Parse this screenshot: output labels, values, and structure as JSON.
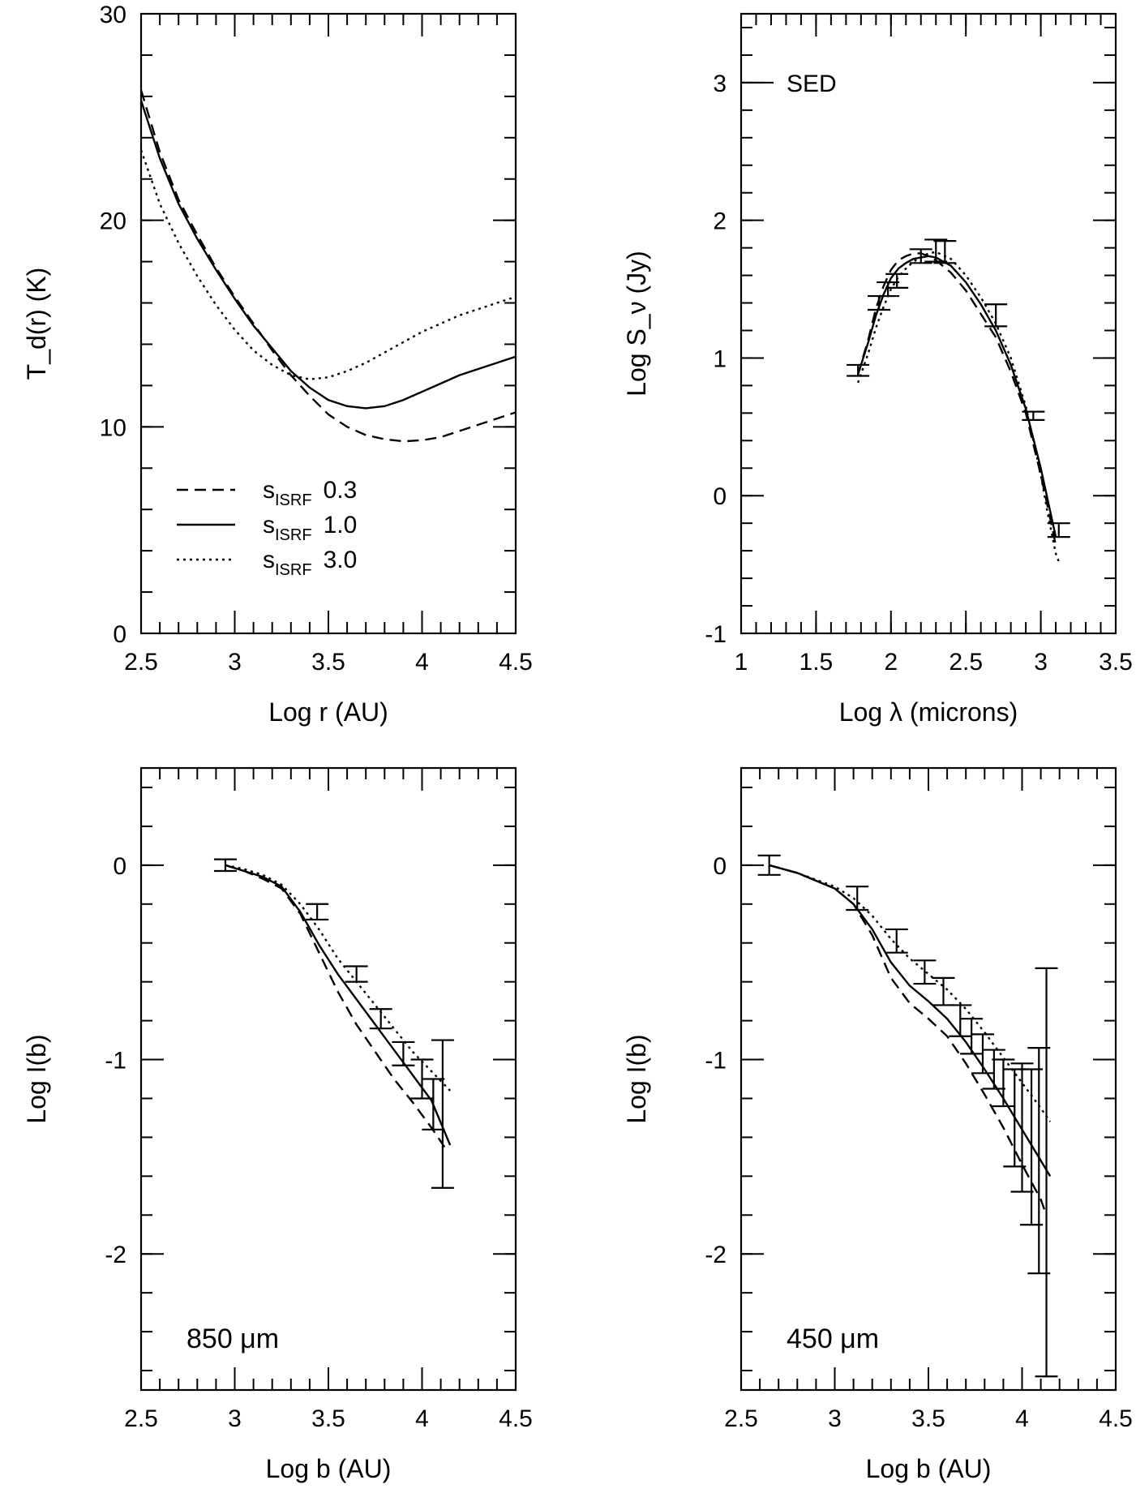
{
  "chart_data": [
    {
      "id": "temperature",
      "type": "line",
      "title": "",
      "xlabel": "Log r (AU)",
      "ylabel": "T_d(r) (K)",
      "xlim": [
        2.5,
        4.5
      ],
      "ylim": [
        0,
        30
      ],
      "xticks": [
        2.5,
        3,
        3.5,
        4,
        4.5
      ],
      "xtick_labels": [
        "2.5",
        "3",
        "3.5",
        "4",
        "4.5"
      ],
      "yticks": [
        0,
        10,
        20,
        30
      ],
      "ytick_labels": [
        "0",
        "10",
        "20",
        "30"
      ],
      "minor_x": 0.1,
      "minor_y": 2,
      "legend": {
        "position": "center-left",
        "symbol": "s",
        "subscript": "ISRF",
        "entries": [
          {
            "style": "dashed",
            "value": "0.3"
          },
          {
            "style": "solid",
            "value": "1.0"
          },
          {
            "style": "dotted",
            "value": "3.0"
          }
        ]
      },
      "series": [
        {
          "name": "s_ISRF 0.3",
          "style": "dashed",
          "x": [
            2.5,
            2.6,
            2.7,
            2.8,
            2.9,
            3.0,
            3.1,
            3.2,
            3.3,
            3.4,
            3.5,
            3.6,
            3.7,
            3.8,
            3.9,
            4.0,
            4.1,
            4.2,
            4.3,
            4.4,
            4.5
          ],
          "y": [
            26.3,
            23.3,
            21.0,
            19.3,
            17.7,
            16.3,
            15.0,
            13.7,
            12.5,
            11.5,
            10.6,
            10.0,
            9.6,
            9.4,
            9.3,
            9.35,
            9.5,
            9.8,
            10.1,
            10.4,
            10.7
          ]
        },
        {
          "name": "s_ISRF 1.0",
          "style": "solid",
          "x": [
            2.5,
            2.6,
            2.7,
            2.8,
            2.9,
            3.0,
            3.1,
            3.2,
            3.3,
            3.4,
            3.5,
            3.6,
            3.7,
            3.8,
            3.9,
            4.0,
            4.1,
            4.2,
            4.3,
            4.4,
            4.5
          ],
          "y": [
            25.8,
            23.0,
            20.8,
            19.1,
            17.6,
            16.2,
            14.9,
            13.8,
            12.7,
            11.9,
            11.3,
            11.0,
            10.9,
            11.0,
            11.3,
            11.7,
            12.1,
            12.5,
            12.8,
            13.1,
            13.4
          ]
        },
        {
          "name": "s_ISRF 3.0",
          "style": "dotted",
          "x": [
            2.5,
            2.6,
            2.7,
            2.8,
            2.9,
            3.0,
            3.1,
            3.2,
            3.3,
            3.4,
            3.5,
            3.6,
            3.7,
            3.8,
            3.9,
            4.0,
            4.1,
            4.2,
            4.3,
            4.4,
            4.5
          ],
          "y": [
            23.4,
            20.8,
            18.9,
            17.3,
            15.9,
            14.7,
            13.7,
            13.0,
            12.5,
            12.3,
            12.4,
            12.7,
            13.1,
            13.6,
            14.1,
            14.6,
            15.0,
            15.4,
            15.7,
            16.0,
            16.3
          ]
        }
      ]
    },
    {
      "id": "sed",
      "type": "line",
      "title": "SED",
      "xlabel": "Log λ (microns)",
      "ylabel": "Log S_ν (Jy)",
      "xlim": [
        1,
        3.5
      ],
      "ylim": [
        -1,
        3.5
      ],
      "xticks": [
        1,
        1.5,
        2,
        2.5,
        3,
        3.5
      ],
      "xtick_labels": [
        "1",
        "1.5",
        "2",
        "2.5",
        "3",
        "3.5"
      ],
      "yticks": [
        -1,
        0,
        1,
        2,
        3
      ],
      "ytick_labels": [
        "-1",
        "0",
        "1",
        "2",
        "3"
      ],
      "minor_x": 0.1,
      "minor_y": 0.2,
      "series": [
        {
          "name": "s_ISRF 0.3",
          "style": "dashed",
          "x": [
            1.78,
            1.85,
            1.9,
            1.95,
            2.0,
            2.05,
            2.1,
            2.15,
            2.2,
            2.25,
            2.3,
            2.4,
            2.5,
            2.6,
            2.7,
            2.8,
            2.9,
            3.0,
            3.05,
            3.1
          ],
          "y": [
            0.88,
            1.14,
            1.36,
            1.52,
            1.64,
            1.71,
            1.74,
            1.76,
            1.76,
            1.74,
            1.71,
            1.62,
            1.49,
            1.32,
            1.15,
            0.9,
            0.6,
            0.15,
            -0.1,
            -0.36
          ]
        },
        {
          "name": "s_ISRF 1.0",
          "style": "solid",
          "x": [
            1.78,
            1.85,
            1.9,
            1.95,
            2.0,
            2.05,
            2.1,
            2.15,
            2.2,
            2.25,
            2.3,
            2.4,
            2.5,
            2.6,
            2.7,
            2.8,
            2.9,
            3.0,
            3.05,
            3.1
          ],
          "y": [
            0.88,
            1.12,
            1.31,
            1.46,
            1.58,
            1.65,
            1.69,
            1.72,
            1.73,
            1.74,
            1.73,
            1.67,
            1.55,
            1.39,
            1.2,
            0.95,
            0.63,
            0.2,
            -0.05,
            -0.3
          ]
        },
        {
          "name": "s_ISRF 3.0",
          "style": "dotted",
          "x": [
            1.78,
            1.85,
            1.9,
            1.95,
            2.0,
            2.05,
            2.1,
            2.15,
            2.2,
            2.25,
            2.3,
            2.4,
            2.5,
            2.6,
            2.7,
            2.8,
            2.9,
            3.0,
            3.05,
            3.1,
            3.12
          ],
          "y": [
            0.82,
            1.04,
            1.22,
            1.37,
            1.5,
            1.59,
            1.65,
            1.7,
            1.73,
            1.76,
            1.77,
            1.72,
            1.6,
            1.44,
            1.25,
            1.0,
            0.65,
            0.15,
            -0.15,
            -0.42,
            -0.48
          ]
        }
      ],
      "errorbars": [
        {
          "x": 1.78,
          "y": 0.91,
          "err": 0.04
        },
        {
          "x": 1.92,
          "y": 1.4,
          "err": 0.05
        },
        {
          "x": 1.98,
          "y": 1.5,
          "err": 0.05
        },
        {
          "x": 2.04,
          "y": 1.56,
          "err": 0.05
        },
        {
          "x": 2.2,
          "y": 1.74,
          "err": 0.05
        },
        {
          "x": 2.3,
          "y": 1.78,
          "err": 0.08
        },
        {
          "x": 2.36,
          "y": 1.77,
          "err": 0.08
        },
        {
          "x": 2.7,
          "y": 1.31,
          "err": 0.08
        },
        {
          "x": 2.95,
          "y": 0.58,
          "err": 0.03
        },
        {
          "x": 3.12,
          "y": -0.25,
          "err": 0.05
        }
      ]
    },
    {
      "id": "profile-850",
      "type": "line",
      "title": "850 μm",
      "xlabel": "Log b (AU)",
      "ylabel": "Log I(b)",
      "xlim": [
        2.5,
        4.5
      ],
      "ylim": [
        -2.7,
        0.5
      ],
      "xticks": [
        2.5,
        3,
        3.5,
        4,
        4.5
      ],
      "xtick_labels": [
        "2.5",
        "3",
        "3.5",
        "4",
        "4.5"
      ],
      "yticks": [
        -2,
        -1,
        0
      ],
      "ytick_labels": [
        "-2",
        "-1",
        "0"
      ],
      "minor_x": 0.1,
      "minor_y": 0.2,
      "series": [
        {
          "name": "s_ISRF 0.3",
          "style": "dashed",
          "x": [
            2.95,
            3.05,
            3.15,
            3.25,
            3.35,
            3.45,
            3.55,
            3.65,
            3.75,
            3.85,
            3.95,
            4.05,
            4.12
          ],
          "y": [
            0.0,
            -0.03,
            -0.07,
            -0.12,
            -0.25,
            -0.45,
            -0.65,
            -0.82,
            -0.96,
            -1.1,
            -1.22,
            -1.35,
            -1.45
          ]
        },
        {
          "name": "s_ISRF 1.0",
          "style": "solid",
          "x": [
            2.95,
            3.05,
            3.15,
            3.25,
            3.35,
            3.45,
            3.55,
            3.65,
            3.75,
            3.85,
            3.95,
            4.05,
            4.15
          ],
          "y": [
            0.0,
            -0.03,
            -0.06,
            -0.11,
            -0.24,
            -0.41,
            -0.56,
            -0.69,
            -0.82,
            -0.95,
            -1.08,
            -1.21,
            -1.44
          ]
        },
        {
          "name": "s_ISRF 3.0",
          "style": "dotted",
          "x": [
            2.95,
            3.05,
            3.15,
            3.25,
            3.35,
            3.45,
            3.55,
            3.65,
            3.75,
            3.85,
            3.95,
            4.05,
            4.15
          ],
          "y": [
            0.0,
            -0.02,
            -0.05,
            -0.1,
            -0.2,
            -0.33,
            -0.48,
            -0.6,
            -0.72,
            -0.84,
            -0.96,
            -1.06,
            -1.16
          ]
        }
      ],
      "errorbars": [
        {
          "x": 2.95,
          "y": 0.0,
          "err": 0.03
        },
        {
          "x": 3.44,
          "y": -0.24,
          "err": 0.04
        },
        {
          "x": 3.65,
          "y": -0.56,
          "err": 0.04
        },
        {
          "x": 3.78,
          "y": -0.79,
          "err": 0.05
        },
        {
          "x": 3.9,
          "y": -0.97,
          "err": 0.06
        },
        {
          "x": 4.0,
          "y": -1.1,
          "err": 0.1
        },
        {
          "x": 4.06,
          "y": -1.23,
          "err": 0.13
        },
        {
          "x": 4.11,
          "y": -1.28,
          "err": 0.38
        }
      ]
    },
    {
      "id": "profile-450",
      "type": "line",
      "title": "450 μm",
      "xlabel": "Log b (AU)",
      "ylabel": "Log I(b)",
      "xlim": [
        2.5,
        4.5
      ],
      "ylim": [
        -2.7,
        0.5
      ],
      "xticks": [
        2.5,
        3,
        3.5,
        4,
        4.5
      ],
      "xtick_labels": [
        "2.5",
        "3",
        "3.5",
        "4",
        "4.5"
      ],
      "yticks": [
        -2,
        -1,
        0
      ],
      "ytick_labels": [
        "-2",
        "-1",
        "0"
      ],
      "minor_x": 0.1,
      "minor_y": 0.2,
      "series": [
        {
          "name": "s_ISRF 0.3",
          "style": "dashed",
          "x": [
            2.65,
            2.8,
            3.0,
            3.1,
            3.2,
            3.3,
            3.4,
            3.5,
            3.6,
            3.7,
            3.8,
            3.9,
            4.0,
            4.1,
            4.13
          ],
          "y": [
            0.0,
            -0.04,
            -0.12,
            -0.2,
            -0.36,
            -0.58,
            -0.71,
            -0.79,
            -0.88,
            -1.02,
            -1.18,
            -1.35,
            -1.54,
            -1.72,
            -1.8
          ]
        },
        {
          "name": "s_ISRF 1.0",
          "style": "solid",
          "x": [
            2.65,
            2.8,
            3.0,
            3.1,
            3.2,
            3.3,
            3.4,
            3.5,
            3.6,
            3.7,
            3.8,
            3.9,
            4.0,
            4.1,
            4.15
          ],
          "y": [
            0.0,
            -0.04,
            -0.12,
            -0.2,
            -0.33,
            -0.5,
            -0.62,
            -0.7,
            -0.79,
            -0.91,
            -1.05,
            -1.2,
            -1.36,
            -1.52,
            -1.6
          ]
        },
        {
          "name": "s_ISRF 3.0",
          "style": "dotted",
          "x": [
            2.65,
            2.8,
            3.0,
            3.1,
            3.2,
            3.3,
            3.4,
            3.5,
            3.6,
            3.7,
            3.8,
            3.9,
            4.0,
            4.1,
            4.15
          ],
          "y": [
            0.0,
            -0.04,
            -0.11,
            -0.17,
            -0.26,
            -0.38,
            -0.48,
            -0.56,
            -0.64,
            -0.74,
            -0.86,
            -0.99,
            -1.12,
            -1.25,
            -1.32
          ]
        }
      ],
      "errorbars": [
        {
          "x": 2.65,
          "y": 0.0,
          "err": 0.05
        },
        {
          "x": 3.12,
          "y": -0.17,
          "err": 0.06
        },
        {
          "x": 3.33,
          "y": -0.39,
          "err": 0.06
        },
        {
          "x": 3.48,
          "y": -0.55,
          "err": 0.06
        },
        {
          "x": 3.58,
          "y": -0.65,
          "err": 0.07
        },
        {
          "x": 3.67,
          "y": -0.8,
          "err": 0.08
        },
        {
          "x": 3.73,
          "y": -0.88,
          "err": 0.09
        },
        {
          "x": 3.79,
          "y": -0.97,
          "err": 0.1
        },
        {
          "x": 3.85,
          "y": -1.05,
          "err": 0.1
        },
        {
          "x": 3.9,
          "y": -1.12,
          "err": 0.12
        },
        {
          "x": 3.96,
          "y": -1.3,
          "err": 0.25
        },
        {
          "x": 4.0,
          "y": -1.35,
          "err": 0.33
        },
        {
          "x": 4.05,
          "y": -1.45,
          "err": 0.4
        },
        {
          "x": 4.09,
          "y": -1.52,
          "err": 0.58
        },
        {
          "x": 4.13,
          "y": -1.58,
          "err": 1.05
        }
      ]
    }
  ]
}
